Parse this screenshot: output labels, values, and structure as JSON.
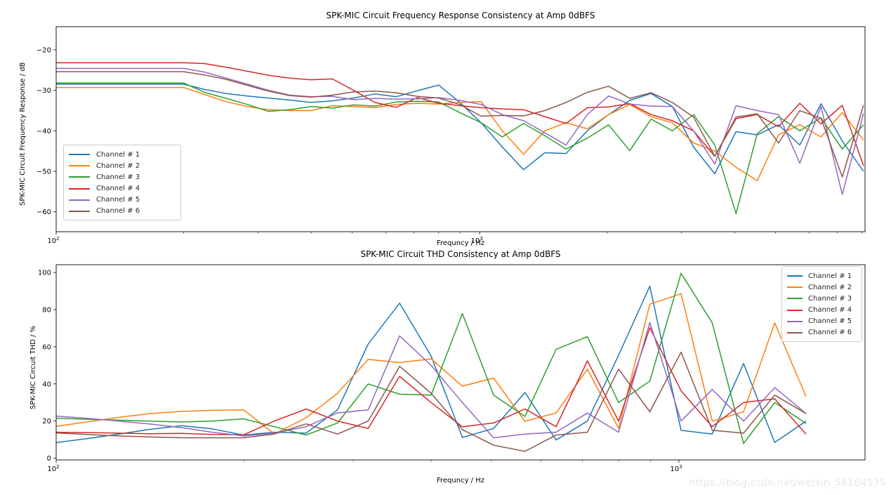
{
  "figure": {
    "background": "#ffffff",
    "watermark": "https://blog.csdn.net/weixin_56164575"
  },
  "legend_labels": [
    "Channel # 1",
    "Channel # 2",
    "Channel # 3",
    "Channel # 4",
    "Channel # 5",
    "Channel # 6"
  ],
  "series_colors": [
    "#1f77b4",
    "#ff7f0e",
    "#2ca02c",
    "#d62728",
    "#9467bd",
    "#8c564b"
  ],
  "chart_data": [
    {
      "id": "fr",
      "type": "line",
      "title": "SPK-MIC Circuit Frequency Response Consistency at Amp 0dBFS",
      "xlabel": "Frequncy / Hz",
      "ylabel": "SPK-MIC Circuit Frequency Response / dB",
      "x_scale": "log",
      "xlim": [
        100,
        8130
      ],
      "ylim": [
        -64.9,
        -14.3
      ],
      "grid": false,
      "legend_position": "center-left",
      "y_ticks": [
        {
          "v": -20,
          "label": "−20"
        },
        {
          "v": -30,
          "label": "−30"
        },
        {
          "v": -40,
          "label": "−40"
        },
        {
          "v": -50,
          "label": "−50"
        },
        {
          "v": -60,
          "label": "−60"
        }
      ],
      "x_major_ticks": [
        {
          "v": 100,
          "base": "10",
          "exp": "2"
        },
        {
          "v": 1000,
          "base": "10",
          "exp": "3"
        }
      ],
      "x_minor_ticks": [
        200,
        300,
        400,
        500,
        600,
        700,
        800,
        900,
        2000,
        3000,
        4000,
        5000,
        6000,
        7000,
        8000
      ],
      "x": [
        100,
        112,
        126,
        141,
        159,
        178,
        200,
        224,
        252,
        283,
        317,
        356,
        400,
        449,
        504,
        566,
        635,
        713,
        800,
        898,
        1008,
        1131,
        1270,
        1425,
        1600,
        1796,
        2016,
        2263,
        2540,
        2851,
        3200,
        3592,
        4032,
        4525,
        5080,
        5702,
        6400,
        7184,
        8063
      ],
      "series": [
        {
          "name": "Channel # 1",
          "color": "#1f77b4",
          "values": [
            -28.5,
            -28.5,
            -28.5,
            -28.5,
            -28.5,
            -28.5,
            -28.5,
            -29.8,
            -30.8,
            -31.4,
            -31.9,
            -32.4,
            -33.0,
            -32.6,
            -31.9,
            -30.9,
            -31.6,
            -30.1,
            -28.7,
            -33.0,
            -38.0,
            -44.0,
            -49.6,
            -45.4,
            -45.6,
            -40.0,
            -36.0,
            -32.5,
            -30.8,
            -34.0,
            -44.0,
            -50.6,
            -40.2,
            -41.0,
            -38.5,
            -43.5,
            -33.3,
            -42.5,
            -50.0
          ]
        },
        {
          "name": "Channel # 2",
          "color": "#ff7f0e",
          "values": [
            -29.3,
            -29.3,
            -29.3,
            -29.3,
            -29.3,
            -29.3,
            -29.3,
            -31.0,
            -32.8,
            -34.0,
            -34.8,
            -35.0,
            -35.0,
            -33.8,
            -34.0,
            -34.3,
            -33.5,
            -33.2,
            -33.4,
            -33.0,
            -32.8,
            -40.0,
            -45.8,
            -40.0,
            -38.0,
            -39.5,
            -36.0,
            -33.5,
            -36.5,
            -38.0,
            -43.0,
            -45.0,
            -49.0,
            -52.3,
            -41.0,
            -38.5,
            -41.5,
            -35.5,
            -42.3
          ]
        },
        {
          "name": "Channel # 3",
          "color": "#2ca02c",
          "values": [
            -28.2,
            -28.2,
            -28.2,
            -28.2,
            -28.2,
            -28.2,
            -28.2,
            -30.5,
            -32.0,
            -33.5,
            -35.2,
            -34.8,
            -34.0,
            -34.4,
            -33.6,
            -33.9,
            -32.9,
            -32.7,
            -32.9,
            -35.5,
            -38.0,
            -41.5,
            -38.2,
            -41.2,
            -44.5,
            -41.8,
            -38.5,
            -44.9,
            -37.1,
            -40.0,
            -36.0,
            -43.5,
            -60.4,
            -40.7,
            -36.5,
            -40.0,
            -36.8,
            -44.5,
            -38.5
          ]
        },
        {
          "name": "Channel # 4",
          "color": "#d62728",
          "values": [
            -23.2,
            -23.2,
            -23.2,
            -23.2,
            -23.2,
            -23.2,
            -23.2,
            -23.4,
            -24.3,
            -25.3,
            -26.3,
            -27.0,
            -27.4,
            -27.2,
            -30.0,
            -33.0,
            -34.2,
            -31.8,
            -33.2,
            -33.8,
            -34.3,
            -34.6,
            -34.8,
            -36.5,
            -38.2,
            -34.3,
            -34.1,
            -33.3,
            -36.0,
            -37.5,
            -40.0,
            -46.3,
            -37.0,
            -36.0,
            -39.0,
            -33.2,
            -38.3,
            -33.7,
            -48.6
          ]
        },
        {
          "name": "Channel # 5",
          "color": "#9467bd",
          "values": [
            -24.6,
            -24.6,
            -24.6,
            -24.6,
            -24.6,
            -24.6,
            -24.6,
            -25.5,
            -27.0,
            -28.5,
            -30.0,
            -31.2,
            -31.6,
            -31.5,
            -32.3,
            -32.0,
            -32.2,
            -32.1,
            -31.8,
            -32.5,
            -33.5,
            -36.0,
            -37.5,
            -40.5,
            -43.5,
            -36.0,
            -31.4,
            -33.4,
            -33.9,
            -34.0,
            -40.0,
            -48.2,
            -33.8,
            -35.0,
            -36.0,
            -48.0,
            -34.0,
            -55.7,
            -35.7
          ]
        },
        {
          "name": "Channel # 6",
          "color": "#8c564b",
          "values": [
            -25.4,
            -25.4,
            -25.4,
            -25.4,
            -25.4,
            -25.4,
            -25.4,
            -26.2,
            -27.3,
            -28.8,
            -30.2,
            -31.3,
            -31.7,
            -31.2,
            -30.4,
            -30.2,
            -30.6,
            -31.5,
            -31.9,
            -33.5,
            -36.4,
            -36.2,
            -36.3,
            -35.0,
            -33.0,
            -30.5,
            -29.0,
            -32.0,
            -30.6,
            -33.0,
            -36.6,
            -46.3,
            -36.6,
            -35.8,
            -43.0,
            -35.0,
            -36.9,
            -51.4,
            -33.7
          ]
        }
      ]
    },
    {
      "id": "thd",
      "type": "line",
      "title": "SPK-MIC Circuit THD Consistency at Amp 0dBFS",
      "xlabel": "Frequncy / Hz",
      "ylabel": "SPK-MIC Circuit THD / %",
      "x_scale": "log",
      "xlim": [
        100,
        1990
      ],
      "ylim": [
        -0.9,
        104.2
      ],
      "grid": false,
      "legend_position": "top-right",
      "y_ticks": [
        {
          "v": 0,
          "label": "0"
        },
        {
          "v": 20,
          "label": "20"
        },
        {
          "v": 40,
          "label": "40"
        },
        {
          "v": 60,
          "label": "60"
        },
        {
          "v": 80,
          "label": "80"
        },
        {
          "v": 100,
          "label": "100"
        }
      ],
      "x_major_ticks": [
        {
          "v": 100,
          "base": "10",
          "exp": "2"
        },
        {
          "v": 1000,
          "base": "10",
          "exp": "3"
        }
      ],
      "x_minor_ticks": [
        200,
        300,
        400,
        500,
        600,
        700,
        800,
        900
      ],
      "x": [
        100,
        112,
        126,
        141,
        159,
        178,
        200,
        224,
        252,
        283,
        317,
        356,
        400,
        449,
        504,
        566,
        635,
        713,
        800,
        898,
        1008,
        1131,
        1270,
        1425,
        1600
      ],
      "series": [
        {
          "name": "Channel # 1",
          "color": "#1f77b4",
          "values": [
            8.4,
            10.5,
            13.0,
            15.5,
            17.5,
            15.8,
            12.5,
            14.0,
            13.5,
            26.0,
            61.5,
            83.5,
            55.0,
            11.2,
            16.0,
            35.4,
            9.8,
            20.0,
            55.5,
            92.6,
            15.0,
            13.0,
            51.0,
            8.5,
            20.0
          ]
        },
        {
          "name": "Channel # 2",
          "color": "#ff7f0e",
          "values": [
            17.2,
            19.5,
            22.0,
            24.0,
            25.2,
            25.8,
            26.0,
            13.1,
            21.8,
            35.0,
            53.2,
            51.5,
            53.5,
            38.8,
            43.2,
            19.9,
            24.4,
            47.9,
            16.1,
            82.9,
            88.6,
            20.0,
            25.0,
            72.9,
            33.2
          ]
        },
        {
          "name": "Channel # 3",
          "color": "#2ca02c",
          "values": [
            21.5,
            21.0,
            20.5,
            20.0,
            19.5,
            20.0,
            21.2,
            17.0,
            12.5,
            19.0,
            40.0,
            34.5,
            34.0,
            77.9,
            34.0,
            22.5,
            58.6,
            65.5,
            30.0,
            41.5,
            99.6,
            72.9,
            8.0,
            30.0,
            18.7
          ]
        },
        {
          "name": "Channel # 4",
          "color": "#d62728",
          "values": [
            14.0,
            13.8,
            13.5,
            13.2,
            13.4,
            12.8,
            12.6,
            20.0,
            26.5,
            20.0,
            16.0,
            44.1,
            30.0,
            16.9,
            19.0,
            26.5,
            17.0,
            52.4,
            20.0,
            70.3,
            36.3,
            17.0,
            30.0,
            32.0,
            13.0
          ]
        },
        {
          "name": "Channel # 5",
          "color": "#9467bd",
          "values": [
            22.7,
            21.5,
            20.0,
            18.5,
            16.5,
            14.0,
            12.0,
            13.5,
            17.0,
            24.4,
            26.0,
            65.9,
            50.0,
            30.0,
            11.0,
            13.0,
            14.0,
            24.3,
            14.0,
            73.1,
            20.0,
            37.0,
            20.0,
            38.0,
            24.0
          ]
        },
        {
          "name": "Channel # 6",
          "color": "#8c564b",
          "values": [
            13.6,
            12.8,
            12.0,
            11.5,
            11.0,
            11.0,
            11.0,
            13.0,
            18.5,
            13.0,
            20.0,
            49.5,
            35.0,
            15.4,
            7.0,
            3.7,
            12.5,
            14.0,
            48.0,
            25.0,
            57.1,
            15.0,
            13.5,
            34.0,
            24.0
          ]
        }
      ]
    }
  ]
}
